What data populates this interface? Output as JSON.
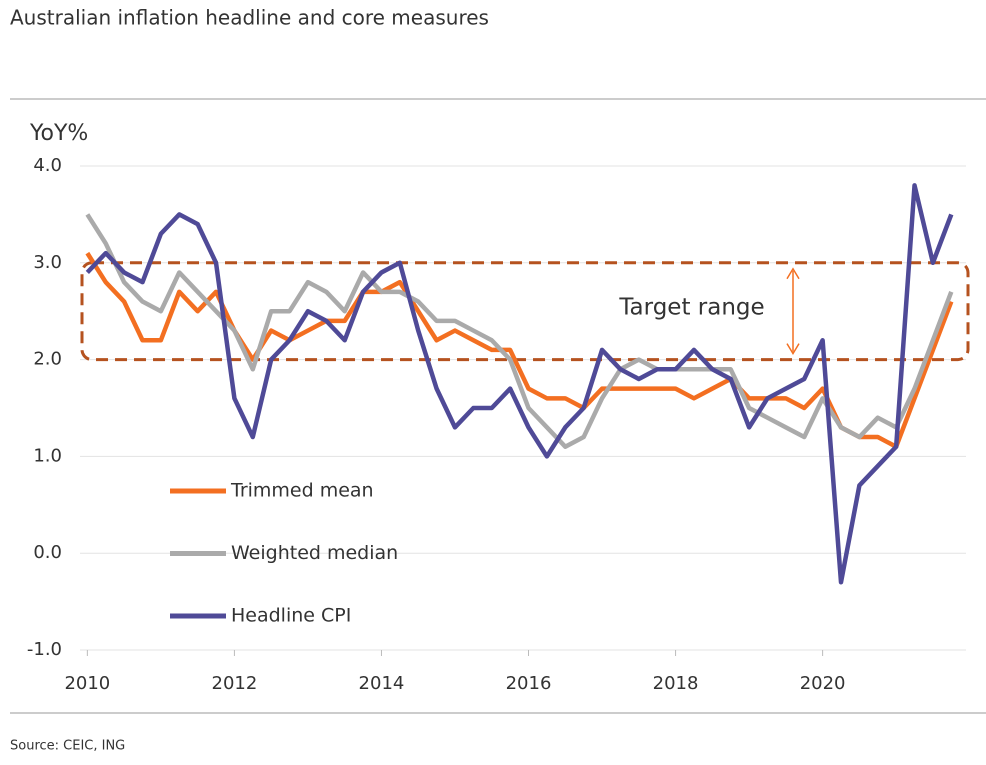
{
  "chart_data": {
    "type": "line",
    "title": "Australian inflation headline and core measures",
    "y_label": "YoY%",
    "source": "Source: CEIC, ING",
    "annotation": "Target range",
    "target_band": [
      2,
      3
    ],
    "x": [
      2010,
      2010.25,
      2010.5,
      2010.75,
      2011,
      2011.25,
      2011.5,
      2011.75,
      2012,
      2012.25,
      2012.5,
      2012.75,
      2013,
      2013.25,
      2013.5,
      2013.75,
      2014,
      2014.25,
      2014.5,
      2014.75,
      2015,
      2015.25,
      2015.5,
      2015.75,
      2016,
      2016.25,
      2016.5,
      2016.75,
      2017,
      2017.25,
      2017.5,
      2017.75,
      2018,
      2018.25,
      2018.5,
      2018.75,
      2019,
      2019.25,
      2019.5,
      2019.75,
      2020,
      2020.25,
      2020.5,
      2020.75,
      2021,
      2021.25,
      2021.5,
      2021.75
    ],
    "series": [
      {
        "name": "Trimmed mean",
        "color": "#f36f21",
        "values": [
          3.1,
          2.8,
          2.6,
          2.2,
          2.2,
          2.7,
          2.5,
          2.7,
          2.3,
          2.0,
          2.3,
          2.2,
          2.3,
          2.4,
          2.4,
          2.7,
          2.7,
          2.8,
          2.5,
          2.2,
          2.3,
          2.2,
          2.1,
          2.1,
          1.7,
          1.6,
          1.6,
          1.5,
          1.7,
          1.7,
          1.7,
          1.7,
          1.7,
          1.6,
          1.7,
          1.8,
          1.6,
          1.6,
          1.6,
          1.5,
          1.7,
          1.3,
          1.2,
          1.2,
          1.1,
          1.6,
          2.1,
          2.6
        ]
      },
      {
        "name": "Weighted median",
        "color": "#aaaaaa",
        "values": [
          3.5,
          3.2,
          2.8,
          2.6,
          2.5,
          2.9,
          2.7,
          2.5,
          2.3,
          1.9,
          2.5,
          2.5,
          2.8,
          2.7,
          2.5,
          2.9,
          2.7,
          2.7,
          2.6,
          2.4,
          2.4,
          2.3,
          2.2,
          2.0,
          1.5,
          1.3,
          1.1,
          1.2,
          1.6,
          1.9,
          2.0,
          1.9,
          1.9,
          1.9,
          1.9,
          1.9,
          1.5,
          1.4,
          1.3,
          1.2,
          1.6,
          1.3,
          1.2,
          1.4,
          1.3,
          1.7,
          2.2,
          2.7
        ]
      },
      {
        "name": "Headline CPI",
        "color": "#4f4a97",
        "values": [
          2.9,
          3.1,
          2.9,
          2.8,
          3.3,
          3.5,
          3.4,
          3.0,
          1.6,
          1.2,
          2.0,
          2.2,
          2.5,
          2.4,
          2.2,
          2.7,
          2.9,
          3.0,
          2.3,
          1.7,
          1.3,
          1.5,
          1.5,
          1.7,
          1.3,
          1.0,
          1.3,
          1.5,
          2.1,
          1.9,
          1.8,
          1.9,
          1.9,
          2.1,
          1.9,
          1.8,
          1.3,
          1.6,
          1.7,
          1.8,
          2.2,
          -0.3,
          0.7,
          0.9,
          1.1,
          3.8,
          3.0,
          3.5
        ]
      }
    ],
    "xlim": [
      2009.9,
      2021.95
    ],
    "xticks": [
      2010,
      2012,
      2014,
      2016,
      2018,
      2020
    ],
    "ylim": [
      -1,
      4
    ],
    "yticks": [
      {
        "value": 4,
        "label": "4.0"
      },
      {
        "value": 3,
        "label": "3.0"
      },
      {
        "value": 2,
        "label": "2.0"
      },
      {
        "value": 1,
        "label": "1.0"
      },
      {
        "value": 0,
        "label": "0.0"
      },
      {
        "value": -1,
        "label": "-1.0"
      }
    ],
    "legend": "lower left"
  }
}
